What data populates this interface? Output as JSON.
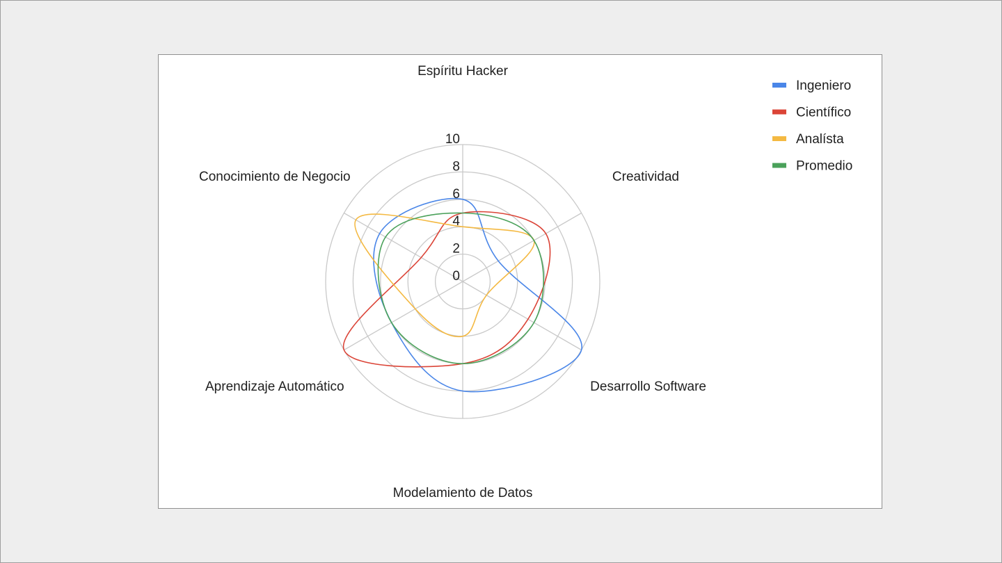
{
  "chart_data": {
    "type": "radar",
    "axes": [
      "Espíritu Hacker",
      "Creatividad",
      "Desarrollo Software",
      "Modelamiento de Datos",
      "Aprendizaje Automático",
      "Conocimiento de Negocio"
    ],
    "r_ticks": [
      "0",
      "2",
      "4",
      "6",
      "8",
      "10"
    ],
    "rlim": [
      0,
      10
    ],
    "grid": true,
    "legend_position": "top-right",
    "series": [
      {
        "name": "Ingeniero",
        "color": "#4a86e8",
        "values": [
          6,
          3,
          10,
          8,
          6,
          7
        ]
      },
      {
        "name": "Científico",
        "color": "#db4437",
        "values": [
          5,
          7,
          5.5,
          6,
          10,
          3.5
        ]
      },
      {
        "name": "Analísta",
        "color": "#f4b942",
        "values": [
          4,
          6,
          2,
          4,
          4,
          9
        ]
      },
      {
        "name": "Promedio",
        "color": "#4aa15a",
        "values": [
          5,
          6,
          6,
          6,
          6,
          6.5
        ]
      }
    ]
  }
}
